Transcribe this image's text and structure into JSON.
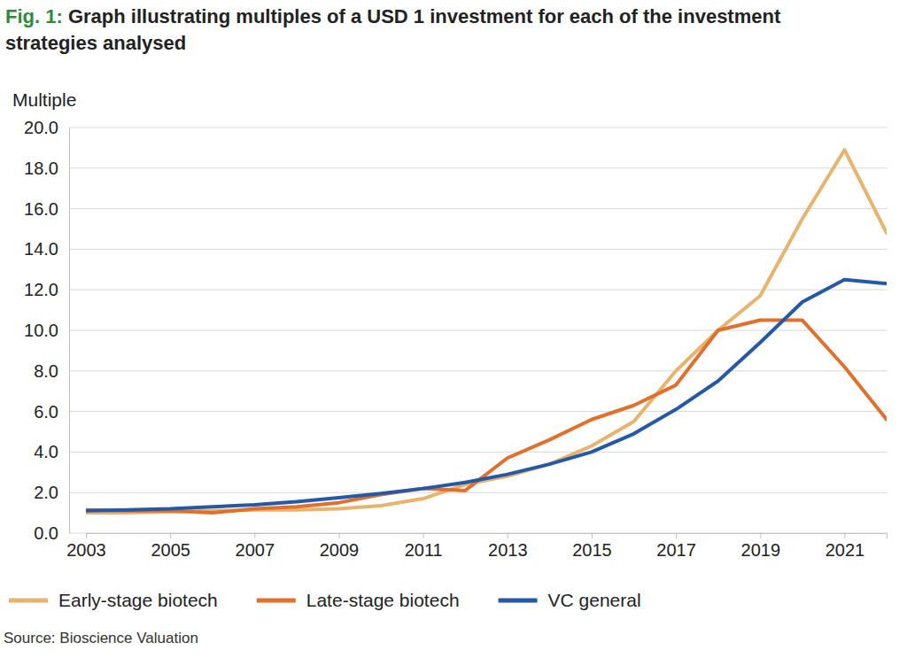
{
  "chart_data": {
    "type": "line",
    "title": "Fig. 1: Graph illustrating multiples of a USD 1 investment for each of the investment strategies analysed",
    "y_label": "Multiple",
    "source": "Source: Bioscience Valuation",
    "x": [
      2003,
      2004,
      2005,
      2006,
      2007,
      2008,
      2009,
      2010,
      2011,
      2012,
      2013,
      2014,
      2015,
      2016,
      2017,
      2018,
      2019,
      2020,
      2021,
      2022
    ],
    "xlim": [
      2003,
      2022
    ],
    "xticks": [
      2003,
      2005,
      2007,
      2009,
      2011,
      2013,
      2015,
      2017,
      2019,
      2021
    ],
    "ylim": [
      0,
      20
    ],
    "yticks": [
      {
        "value": 0,
        "label": "0.0"
      },
      {
        "value": 2,
        "label": "2.0"
      },
      {
        "value": 4,
        "label": "4.0"
      },
      {
        "value": 6,
        "label": "6.0"
      },
      {
        "value": 8,
        "label": "8.0"
      },
      {
        "value": 10,
        "label": "10.0"
      },
      {
        "value": 12,
        "label": "12.0"
      },
      {
        "value": 14,
        "label": "14.0"
      },
      {
        "value": 16,
        "label": "16.0"
      },
      {
        "value": 18,
        "label": "18.0"
      },
      {
        "value": 20,
        "label": "20.0"
      }
    ],
    "grid": true,
    "legend": "bottom",
    "series": [
      {
        "name": "Early-stage biotech",
        "color": "#e8b36c",
        "values": [
          1.0,
          1.0,
          1.05,
          1.1,
          1.15,
          1.15,
          1.2,
          1.35,
          1.7,
          2.4,
          2.8,
          3.4,
          4.3,
          5.5,
          8.0,
          10.0,
          11.7,
          15.5,
          18.9,
          14.8
        ]
      },
      {
        "name": "Late-stage biotech",
        "color": "#e0702c",
        "values": [
          1.15,
          1.1,
          1.1,
          1.0,
          1.2,
          1.3,
          1.5,
          1.9,
          2.2,
          2.1,
          3.7,
          4.6,
          5.6,
          6.3,
          7.3,
          10.0,
          10.5,
          10.5,
          8.2,
          5.6
        ]
      },
      {
        "name": "VC general",
        "color": "#2559a7",
        "values": [
          1.1,
          1.15,
          1.2,
          1.3,
          1.4,
          1.55,
          1.75,
          1.95,
          2.2,
          2.5,
          2.9,
          3.4,
          4.0,
          4.9,
          6.1,
          7.5,
          9.4,
          11.4,
          12.5,
          12.3
        ]
      }
    ]
  }
}
